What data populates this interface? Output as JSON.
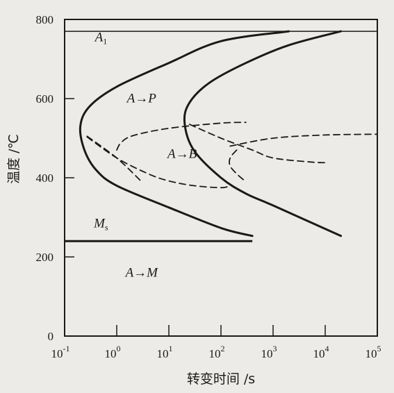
{
  "chart_data": {
    "type": "line",
    "xscale": "log",
    "xlim": [
      0.1,
      100000
    ],
    "ylim": [
      0,
      800
    ],
    "xlabel": "转变时间 /s",
    "ylabel": "温度 /℃",
    "xticks": [
      {
        "value": 0.1,
        "base": "10",
        "exp": "-1"
      },
      {
        "value": 1,
        "base": "10",
        "exp": "0"
      },
      {
        "value": 10,
        "base": "10",
        "exp": "1"
      },
      {
        "value": 100,
        "base": "10",
        "exp": "2"
      },
      {
        "value": 1000,
        "base": "10",
        "exp": "3"
      },
      {
        "value": 10000,
        "base": "10",
        "exp": "4"
      },
      {
        "value": 100000,
        "base": "10",
        "exp": "5"
      }
    ],
    "yticks": [
      "0",
      "200",
      "400",
      "600",
      "800"
    ],
    "series": [
      {
        "style": "solid",
        "points": [
          [
            2000,
            770
          ],
          [
            100,
            745
          ],
          [
            10,
            690
          ],
          [
            1,
            630
          ],
          [
            0.3,
            580
          ],
          [
            0.2,
            530
          ],
          [
            0.24,
            470
          ],
          [
            0.4,
            420
          ],
          [
            1,
            380
          ],
          [
            10,
            325
          ],
          [
            100,
            273
          ],
          [
            400,
            253
          ]
        ]
      },
      {
        "style": "solid",
        "points": [
          [
            20000,
            770
          ],
          [
            2000,
            735
          ],
          [
            300,
            690
          ],
          [
            60,
            640
          ],
          [
            25,
            590
          ],
          [
            20,
            540
          ],
          [
            30,
            470
          ],
          [
            100,
            400
          ],
          [
            300,
            360
          ],
          [
            1000,
            330
          ],
          [
            20000,
            253
          ]
        ]
      },
      {
        "style": "dashed",
        "points": [
          [
            0.27,
            503
          ],
          [
            1,
            450
          ],
          [
            4,
            410
          ],
          [
            10,
            392
          ],
          [
            30,
            380
          ],
          [
            100,
            375
          ],
          [
            150,
            380
          ]
        ]
      },
      {
        "style": "dashed",
        "points": [
          [
            0.27,
            505
          ],
          [
            1,
            450
          ],
          [
            3,
            390
          ]
        ]
      },
      {
        "style": "dashed",
        "points": [
          [
            1,
            470
          ],
          [
            1.2,
            488
          ],
          [
            2,
            506
          ],
          [
            10,
            525
          ],
          [
            100,
            538
          ],
          [
            300,
            540
          ]
        ]
      },
      {
        "style": "dashed",
        "points": [
          [
            25,
            535
          ],
          [
            100,
            500
          ],
          [
            400,
            470
          ],
          [
            1000,
            450
          ],
          [
            5000,
            440
          ],
          [
            10000,
            438
          ]
        ]
      },
      {
        "style": "dashed",
        "points": [
          [
            200,
            470
          ],
          [
            150,
            450
          ],
          [
            150,
            430
          ],
          [
            200,
            410
          ],
          [
            300,
            390
          ]
        ]
      },
      {
        "style": "dashed",
        "points": [
          [
            150,
            480
          ],
          [
            1000,
            500
          ],
          [
            10000,
            508
          ],
          [
            100000,
            510
          ]
        ]
      }
    ],
    "annotations": [
      {
        "label": "A",
        "sub": "1",
        "x": 0.5,
        "y": 745
      },
      {
        "label": "A→P",
        "x": 3,
        "y": 590
      },
      {
        "label": "A→B",
        "x": 18,
        "y": 450
      },
      {
        "label": "M",
        "sub": "s",
        "x": 0.5,
        "y": 275
      },
      {
        "label": "A→M",
        "x": 3,
        "y": 150
      }
    ],
    "hlines": [
      {
        "name": "A1",
        "y": 770,
        "style": "thin"
      },
      {
        "name": "Ms",
        "y": 240,
        "x_end": 400,
        "style": "thick"
      }
    ],
    "grid": false
  }
}
